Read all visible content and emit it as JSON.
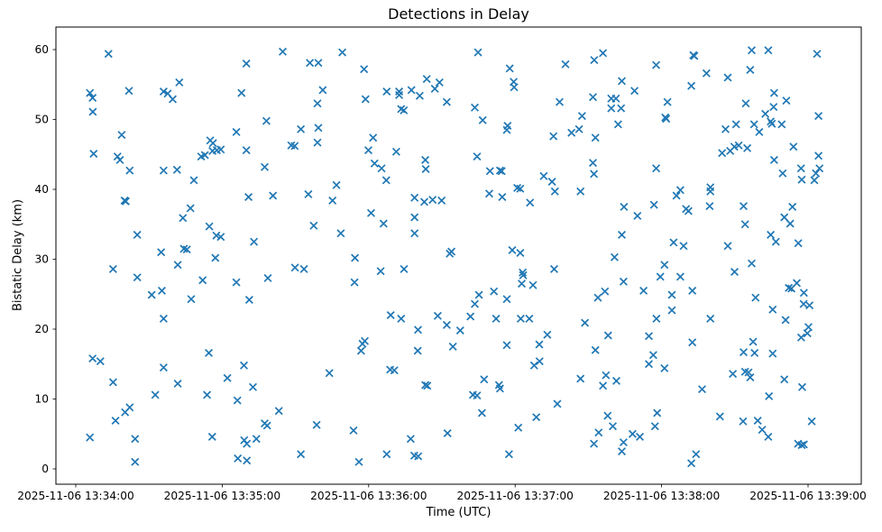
{
  "title": "Detections in Delay",
  "xlabel": "Time (UTC)",
  "ylabel": "Bistatic Delay (km)",
  "colors": {
    "marker": "#1f77b4",
    "axis": "#000000",
    "background": "#ffffff"
  },
  "chart_data": {
    "type": "scatter",
    "marker": "x",
    "title": "Detections in Delay",
    "xlabel": "Time (UTC)",
    "ylabel": "Bistatic Delay (km)",
    "grid": false,
    "legend": "none",
    "x_tick_labels": [
      "2025-11-06 13:34:00",
      "2025-11-06 13:35:00",
      "2025-11-06 13:36:00",
      "2025-11-06 13:37:00",
      "2025-11-06 13:38:00",
      "2025-11-06 13:39:00"
    ],
    "x_tick_seconds": [
      0,
      60,
      120,
      180,
      240,
      300
    ],
    "y_ticks": [
      0,
      10,
      20,
      30,
      40,
      50,
      60
    ],
    "x_range_seconds": [
      -8.1,
      322.2
    ],
    "y_range": [
      -2.2,
      63.2
    ],
    "x_unit": "seconds after 2025-11-06 13:34:00 UTC",
    "y_unit": "km",
    "points": [
      [
        13.4,
        59.4
      ],
      [
        69.9,
        58.0
      ],
      [
        42.4,
        55.3
      ],
      [
        5.8,
        53.8
      ],
      [
        6.9,
        53.1
      ],
      [
        21.8,
        54.1
      ],
      [
        36.0,
        54.0
      ],
      [
        37.7,
        53.7
      ],
      [
        39.7,
        52.9
      ],
      [
        67.9,
        53.8
      ],
      [
        7.0,
        51.1
      ],
      [
        65.8,
        48.2
      ],
      [
        18.8,
        47.8
      ],
      [
        55.1,
        47.0
      ],
      [
        56.2,
        46.6
      ],
      [
        7.3,
        45.1
      ],
      [
        51.4,
        44.7
      ],
      [
        52.9,
        44.9
      ],
      [
        56.0,
        45.5
      ],
      [
        57.8,
        45.6
      ],
      [
        59.4,
        45.7
      ],
      [
        69.9,
        45.6
      ],
      [
        17.1,
        44.7
      ],
      [
        18.1,
        44.2
      ],
      [
        22.1,
        42.7
      ],
      [
        36.0,
        42.7
      ],
      [
        41.5,
        42.8
      ],
      [
        48.4,
        41.3
      ],
      [
        84.8,
        59.7
      ],
      [
        109.2,
        59.6
      ],
      [
        95.9,
        58.1
      ],
      [
        99.4,
        58.1
      ],
      [
        118.1,
        57.2
      ],
      [
        143.8,
        55.8
      ],
      [
        149.0,
        55.3
      ],
      [
        147.1,
        54.4
      ],
      [
        101.2,
        54.2
      ],
      [
        127.4,
        54.0
      ],
      [
        132.5,
        54.0
      ],
      [
        132.5,
        53.5
      ],
      [
        137.5,
        54.2
      ],
      [
        140.9,
        53.4
      ],
      [
        152.0,
        52.5
      ],
      [
        118.7,
        52.9
      ],
      [
        99.0,
        52.3
      ],
      [
        133.3,
        51.5
      ],
      [
        134.4,
        51.3
      ],
      [
        78.1,
        49.8
      ],
      [
        92.2,
        48.6
      ],
      [
        99.4,
        48.8
      ],
      [
        88.3,
        46.3
      ],
      [
        89.7,
        46.2
      ],
      [
        99.0,
        46.7
      ],
      [
        121.8,
        47.4
      ],
      [
        119.9,
        45.6
      ],
      [
        131.3,
        45.4
      ],
      [
        77.4,
        43.2
      ],
      [
        122.4,
        43.7
      ],
      [
        125.3,
        43.0
      ],
      [
        143.2,
        44.2
      ],
      [
        143.4,
        42.9
      ],
      [
        127.2,
        41.3
      ],
      [
        164.8,
        59.6
      ],
      [
        200.6,
        57.9
      ],
      [
        212.4,
        58.5
      ],
      [
        216.0,
        59.5
      ],
      [
        237.8,
        57.8
      ],
      [
        177.8,
        57.3
      ],
      [
        179.4,
        55.4
      ],
      [
        179.6,
        54.6
      ],
      [
        223.7,
        55.5
      ],
      [
        228.9,
        54.1
      ],
      [
        211.9,
        53.2
      ],
      [
        219.4,
        53.0
      ],
      [
        221.3,
        53.0
      ],
      [
        198.2,
        52.5
      ],
      [
        219.4,
        51.6
      ],
      [
        223.4,
        51.6
      ],
      [
        163.5,
        51.7
      ],
      [
        166.7,
        49.9
      ],
      [
        176.9,
        49.1
      ],
      [
        176.6,
        48.5
      ],
      [
        207.4,
        50.5
      ],
      [
        222.2,
        49.3
      ],
      [
        195.7,
        47.6
      ],
      [
        203.1,
        48.1
      ],
      [
        206.2,
        48.6
      ],
      [
        212.9,
        47.4
      ],
      [
        164.4,
        44.7
      ],
      [
        169.7,
        42.6
      ],
      [
        173.8,
        42.7
      ],
      [
        174.5,
        42.6
      ],
      [
        191.7,
        41.9
      ],
      [
        195.1,
        41.1
      ],
      [
        211.9,
        43.8
      ],
      [
        212.3,
        42.2
      ],
      [
        237.8,
        43.0
      ],
      [
        253.0,
        59.2
      ],
      [
        253.4,
        59.1
      ],
      [
        276.9,
        59.9
      ],
      [
        283.7,
        59.9
      ],
      [
        303.7,
        59.4
      ],
      [
        276.3,
        57.1
      ],
      [
        258.4,
        56.6
      ],
      [
        267.1,
        56.0
      ],
      [
        252.2,
        54.8
      ],
      [
        286.1,
        53.8
      ],
      [
        291.1,
        52.7
      ],
      [
        242.4,
        52.5
      ],
      [
        285.9,
        51.8
      ],
      [
        282.5,
        50.8
      ],
      [
        241.5,
        50.3
      ],
      [
        241.9,
        50.1
      ],
      [
        284.7,
        49.7
      ],
      [
        285.2,
        49.4
      ],
      [
        304.3,
        50.5
      ],
      [
        274.5,
        52.3
      ],
      [
        266.2,
        48.6
      ],
      [
        270.5,
        49.3
      ],
      [
        277.9,
        49.3
      ],
      [
        289.2,
        49.3
      ],
      [
        280.0,
        48.2
      ],
      [
        264.8,
        45.2
      ],
      [
        268.1,
        45.5
      ],
      [
        269.8,
        46.1
      ],
      [
        271.6,
        46.3
      ],
      [
        275.1,
        45.9
      ],
      [
        294.0,
        46.1
      ],
      [
        286.1,
        44.2
      ],
      [
        304.3,
        44.8
      ],
      [
        289.6,
        42.3
      ],
      [
        297.1,
        43.0
      ],
      [
        304.7,
        43.0
      ],
      [
        303.2,
        42.3
      ],
      [
        297.4,
        41.4
      ],
      [
        302.6,
        41.3
      ],
      [
        20.0,
        38.4
      ],
      [
        20.5,
        38.3
      ],
      [
        70.8,
        38.9
      ],
      [
        47.0,
        37.3
      ],
      [
        43.9,
        35.9
      ],
      [
        54.7,
        34.7
      ],
      [
        57.6,
        33.4
      ],
      [
        59.4,
        33.2
      ],
      [
        73.0,
        32.5
      ],
      [
        25.2,
        33.5
      ],
      [
        35.0,
        31.0
      ],
      [
        44.3,
        31.5
      ],
      [
        45.5,
        31.4
      ],
      [
        57.2,
        30.2
      ],
      [
        41.8,
        29.2
      ],
      [
        15.3,
        28.6
      ],
      [
        25.2,
        27.4
      ],
      [
        52.0,
        27.0
      ],
      [
        65.8,
        26.7
      ],
      [
        35.3,
        25.5
      ],
      [
        31.1,
        24.9
      ],
      [
        47.3,
        24.3
      ],
      [
        71.1,
        24.2
      ],
      [
        36.0,
        21.5
      ],
      [
        106.8,
        40.6
      ],
      [
        80.8,
        39.1
      ],
      [
        95.3,
        39.3
      ],
      [
        105.2,
        38.4
      ],
      [
        138.8,
        38.8
      ],
      [
        142.8,
        38.2
      ],
      [
        146.2,
        38.5
      ],
      [
        149.9,
        38.4
      ],
      [
        121.0,
        36.6
      ],
      [
        126.1,
        35.1
      ],
      [
        138.8,
        36.0
      ],
      [
        97.5,
        34.8
      ],
      [
        108.6,
        33.7
      ],
      [
        138.8,
        33.7
      ],
      [
        153.9,
        31.1
      ],
      [
        153.2,
        30.8
      ],
      [
        114.4,
        30.2
      ],
      [
        89.8,
        28.8
      ],
      [
        93.5,
        28.6
      ],
      [
        78.7,
        27.3
      ],
      [
        124.9,
        28.3
      ],
      [
        134.5,
        28.6
      ],
      [
        114.2,
        26.7
      ],
      [
        129.0,
        22.0
      ],
      [
        133.3,
        21.5
      ],
      [
        148.3,
        21.9
      ],
      [
        152.0,
        20.6
      ],
      [
        140.2,
        19.9
      ],
      [
        180.9,
        40.2
      ],
      [
        182.1,
        40.1
      ],
      [
        169.4,
        39.4
      ],
      [
        174.7,
        38.9
      ],
      [
        196.3,
        39.7
      ],
      [
        206.8,
        39.7
      ],
      [
        186.1,
        38.1
      ],
      [
        224.6,
        37.5
      ],
      [
        236.9,
        37.8
      ],
      [
        230.1,
        36.2
      ],
      [
        223.7,
        33.5
      ],
      [
        178.8,
        31.3
      ],
      [
        182.1,
        30.9
      ],
      [
        220.7,
        30.3
      ],
      [
        183.1,
        28.1
      ],
      [
        183.3,
        27.7
      ],
      [
        182.7,
        26.5
      ],
      [
        187.3,
        26.3
      ],
      [
        196.0,
        28.6
      ],
      [
        224.4,
        26.8
      ],
      [
        165.2,
        24.9
      ],
      [
        163.5,
        23.6
      ],
      [
        171.3,
        25.4
      ],
      [
        176.6,
        24.3
      ],
      [
        216.8,
        25.4
      ],
      [
        213.9,
        24.5
      ],
      [
        232.6,
        25.5
      ],
      [
        161.7,
        21.8
      ],
      [
        172.2,
        21.5
      ],
      [
        182.3,
        21.5
      ],
      [
        185.8,
        21.5
      ],
      [
        208.6,
        20.9
      ],
      [
        237.9,
        21.5
      ],
      [
        157.5,
        19.8
      ],
      [
        247.7,
        39.9
      ],
      [
        246.1,
        39.1
      ],
      [
        260.0,
        40.3
      ],
      [
        260.0,
        39.7
      ],
      [
        250.0,
        37.2
      ],
      [
        251.0,
        36.9
      ],
      [
        259.7,
        37.6
      ],
      [
        273.6,
        37.6
      ],
      [
        293.6,
        37.5
      ],
      [
        290.3,
        36.0
      ],
      [
        292.7,
        35.1
      ],
      [
        274.2,
        35.0
      ],
      [
        284.7,
        33.5
      ],
      [
        286.8,
        32.5
      ],
      [
        244.9,
        32.4
      ],
      [
        249.0,
        31.9
      ],
      [
        267.1,
        31.9
      ],
      [
        296.0,
        32.3
      ],
      [
        241.2,
        29.2
      ],
      [
        276.9,
        29.4
      ],
      [
        269.9,
        28.2
      ],
      [
        239.5,
        27.5
      ],
      [
        247.7,
        27.5
      ],
      [
        252.6,
        25.5
      ],
      [
        244.2,
        24.9
      ],
      [
        278.5,
        24.5
      ],
      [
        292.1,
        25.9
      ],
      [
        293.2,
        25.8
      ],
      [
        295.4,
        26.6
      ],
      [
        298.3,
        25.2
      ],
      [
        298.2,
        23.6
      ],
      [
        300.6,
        23.4
      ],
      [
        285.5,
        22.8
      ],
      [
        244.2,
        22.7
      ],
      [
        260.0,
        21.5
      ],
      [
        290.8,
        21.3
      ],
      [
        6.9,
        15.8
      ],
      [
        10.1,
        15.4
      ],
      [
        36.0,
        14.5
      ],
      [
        54.5,
        16.6
      ],
      [
        68.9,
        14.8
      ],
      [
        15.3,
        12.4
      ],
      [
        41.8,
        12.2
      ],
      [
        62.1,
        13.0
      ],
      [
        32.6,
        10.6
      ],
      [
        53.8,
        10.6
      ],
      [
        72.6,
        11.7
      ],
      [
        66.2,
        9.8
      ],
      [
        22.1,
        8.8
      ],
      [
        20.2,
        8.1
      ],
      [
        16.3,
        6.9
      ],
      [
        5.8,
        4.5
      ],
      [
        24.3,
        4.3
      ],
      [
        55.9,
        4.6
      ],
      [
        69.0,
        4.1
      ],
      [
        70.1,
        3.6
      ],
      [
        66.4,
        1.5
      ],
      [
        70.1,
        1.2
      ],
      [
        24.3,
        1.0
      ],
      [
        117.5,
        17.9
      ],
      [
        118.4,
        18.3
      ],
      [
        116.9,
        16.9
      ],
      [
        140.1,
        16.9
      ],
      [
        154.5,
        17.5
      ],
      [
        103.9,
        13.7
      ],
      [
        128.8,
        14.2
      ],
      [
        130.5,
        14.1
      ],
      [
        143.2,
        12.0
      ],
      [
        144.0,
        11.9
      ],
      [
        83.2,
        8.3
      ],
      [
        77.4,
        6.5
      ],
      [
        78.4,
        6.2
      ],
      [
        74.0,
        4.3
      ],
      [
        98.7,
        6.3
      ],
      [
        113.8,
        5.5
      ],
      [
        137.2,
        4.3
      ],
      [
        152.3,
        5.1
      ],
      [
        92.2,
        2.1
      ],
      [
        127.4,
        2.1
      ],
      [
        138.7,
        1.9
      ],
      [
        140.3,
        1.8
      ],
      [
        116.0,
        1.0
      ],
      [
        193.2,
        19.2
      ],
      [
        176.6,
        17.7
      ],
      [
        189.9,
        17.8
      ],
      [
        218.1,
        19.1
      ],
      [
        234.8,
        19.0
      ],
      [
        212.9,
        17.0
      ],
      [
        236.6,
        16.3
      ],
      [
        234.8,
        15.0
      ],
      [
        187.8,
        14.8
      ],
      [
        190.0,
        15.4
      ],
      [
        167.3,
        12.8
      ],
      [
        173.4,
        12.0
      ],
      [
        173.8,
        11.5
      ],
      [
        162.7,
        10.6
      ],
      [
        164.4,
        10.5
      ],
      [
        206.8,
        12.9
      ],
      [
        217.2,
        13.4
      ],
      [
        216.0,
        11.9
      ],
      [
        221.5,
        12.6
      ],
      [
        197.3,
        9.3
      ],
      [
        166.4,
        8.0
      ],
      [
        188.7,
        7.4
      ],
      [
        181.3,
        5.9
      ],
      [
        217.9,
        7.6
      ],
      [
        220.0,
        6.1
      ],
      [
        214.2,
        5.2
      ],
      [
        212.3,
        3.6
      ],
      [
        228.1,
        5.0
      ],
      [
        231.1,
        4.6
      ],
      [
        224.4,
        3.8
      ],
      [
        223.7,
        2.5
      ],
      [
        177.5,
        2.1
      ],
      [
        300.2,
        20.3
      ],
      [
        299.7,
        19.4
      ],
      [
        297.2,
        18.8
      ],
      [
        252.6,
        18.1
      ],
      [
        277.5,
        18.2
      ],
      [
        273.6,
        16.7
      ],
      [
        278.1,
        16.6
      ],
      [
        285.5,
        16.5
      ],
      [
        241.2,
        14.4
      ],
      [
        269.2,
        13.6
      ],
      [
        274.2,
        13.9
      ],
      [
        275.6,
        13.8
      ],
      [
        276.3,
        13.1
      ],
      [
        290.3,
        12.8
      ],
      [
        256.6,
        11.4
      ],
      [
        297.6,
        11.7
      ],
      [
        284.0,
        10.4
      ],
      [
        238.2,
        8.0
      ],
      [
        237.3,
        6.1
      ],
      [
        263.9,
        7.5
      ],
      [
        273.4,
        6.8
      ],
      [
        279.4,
        6.9
      ],
      [
        281.2,
        5.6
      ],
      [
        283.7,
        4.6
      ],
      [
        301.5,
        6.8
      ],
      [
        295.9,
        3.6
      ],
      [
        297.4,
        3.4
      ],
      [
        298.3,
        3.5
      ],
      [
        254.1,
        2.1
      ],
      [
        252.2,
        0.8
      ]
    ]
  }
}
